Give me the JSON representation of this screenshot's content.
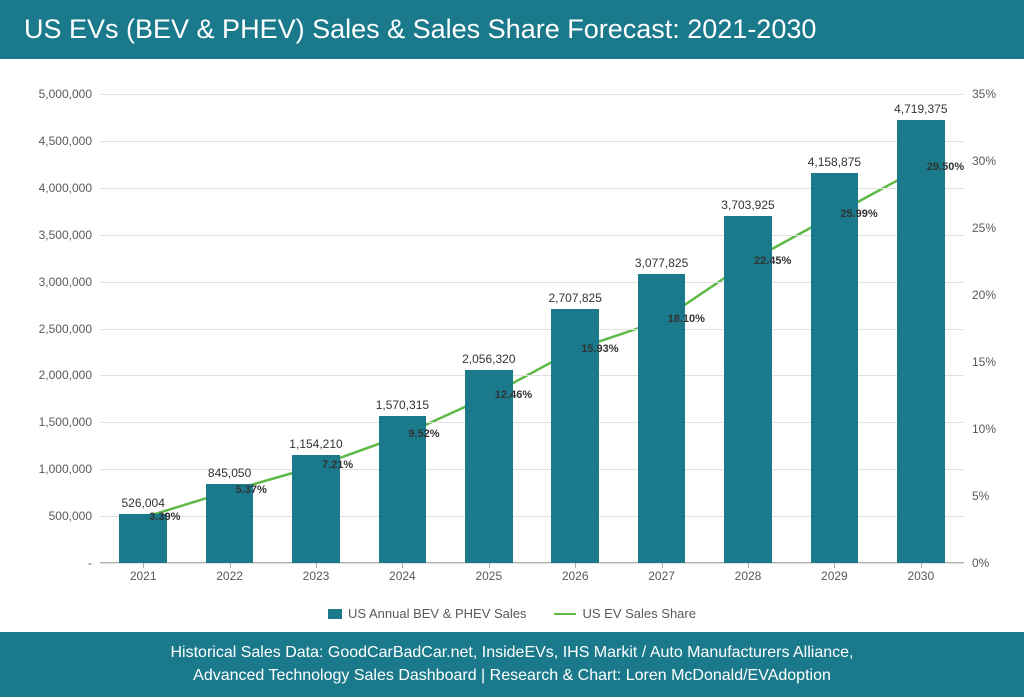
{
  "header": {
    "title": "US EVs (BEV & PHEV) Sales & Sales Share Forecast: 2021-2030"
  },
  "footer": {
    "line1": "Historical Sales Data: GoodCarBadCar.net, InsideEVs, IHS Markit / Auto Manufacturers Alliance,",
    "line2": "Advanced Technology Sales Dashboard | Research & Chart: Loren McDonald/EVAdoption"
  },
  "chart": {
    "type": "bar+line",
    "categories": [
      "2021",
      "2022",
      "2023",
      "2024",
      "2025",
      "2026",
      "2027",
      "2028",
      "2029",
      "2030"
    ],
    "bars": {
      "values": [
        526004,
        845050,
        1154210,
        1570315,
        2056320,
        2707825,
        3077825,
        3703925,
        4158875,
        4719375
      ],
      "labels": [
        "526,004",
        "845,050",
        "1,154,210",
        "1,570,315",
        "2,056,320",
        "2,707,825",
        "3,077,825",
        "3,703,925",
        "4,158,875",
        "4,719,375"
      ],
      "color": "#1a7a8c",
      "width_fraction": 0.55
    },
    "line": {
      "values_pct": [
        3.39,
        5.37,
        7.21,
        9.52,
        12.46,
        15.93,
        18.1,
        22.45,
        25.99,
        29.5
      ],
      "labels": [
        "3.39%",
        "5.37%",
        "7.21%",
        "9.52%",
        "12.46%",
        "15.93%",
        "18.10%",
        "22.45%",
        "25.99%",
        "29.50%"
      ],
      "color": "#5fb947",
      "stroke_width": 2.5,
      "marker_radius": 3
    },
    "y_left": {
      "min": 0,
      "max": 5000000,
      "step": 500000,
      "tick_labels": [
        "-",
        "500,000",
        "1,000,000",
        "1,500,000",
        "2,000,000",
        "2,500,000",
        "3,000,000",
        "3,500,000",
        "4,000,000",
        "4,500,000",
        "5,000,000"
      ]
    },
    "y_right": {
      "min": 0,
      "max": 35,
      "step": 5,
      "tick_labels": [
        "0%",
        "5%",
        "10%",
        "15%",
        "20%",
        "25%",
        "30%",
        "35%"
      ]
    },
    "grid_color": "#e0e0e0",
    "background_color": "#ffffff",
    "axis_font_size": 12,
    "title_font_size": 27
  },
  "legend": {
    "bar_label": "US Annual BEV & PHEV Sales",
    "line_label": "US EV Sales Share"
  }
}
